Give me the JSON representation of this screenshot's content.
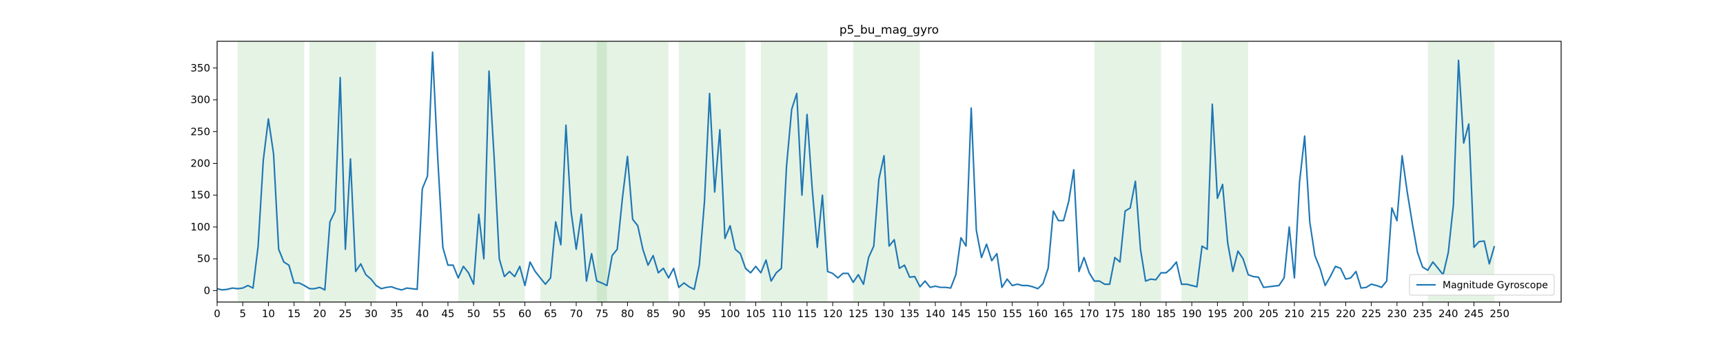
{
  "chart_data": {
    "type": "line",
    "title": "p5_bu_mag_gyro",
    "xlabel": "",
    "ylabel": "",
    "xlim": [
      0,
      262
    ],
    "ylim": [
      -18,
      392
    ],
    "xticks": [
      0,
      5,
      10,
      15,
      20,
      25,
      30,
      35,
      40,
      45,
      50,
      55,
      60,
      65,
      70,
      75,
      80,
      85,
      90,
      95,
      100,
      105,
      110,
      115,
      120,
      125,
      130,
      135,
      140,
      145,
      150,
      155,
      160,
      165,
      170,
      175,
      180,
      185,
      190,
      195,
      200,
      205,
      210,
      215,
      220,
      225,
      230,
      235,
      240,
      245,
      250
    ],
    "yticks": [
      0,
      50,
      100,
      150,
      200,
      250,
      300,
      350
    ],
    "grid": false,
    "legend_position": "lower-right",
    "line_color": "#1f77b4",
    "shade_color": "#2ca02c",
    "shaded_regions": [
      [
        4,
        17
      ],
      [
        18,
        31
      ],
      [
        47,
        60
      ],
      [
        63,
        76
      ],
      [
        74,
        88
      ],
      [
        90,
        103
      ],
      [
        106,
        119
      ],
      [
        124,
        137
      ],
      [
        171,
        184
      ],
      [
        188,
        201
      ],
      [
        236,
        249
      ]
    ],
    "series": [
      {
        "name": "Magnitude Gyroscope",
        "x_start": 0,
        "values": [
          3,
          1,
          2,
          4,
          3,
          4,
          8,
          4,
          70,
          205,
          270,
          215,
          65,
          45,
          40,
          12,
          12,
          8,
          3,
          3,
          5,
          1,
          108,
          125,
          335,
          65,
          207,
          30,
          42,
          25,
          18,
          8,
          3,
          5,
          6,
          3,
          1,
          4,
          3,
          2,
          160,
          180,
          375,
          210,
          68,
          40,
          40,
          20,
          38,
          28,
          10,
          120,
          50,
          345,
          210,
          50,
          22,
          30,
          22,
          38,
          8,
          45,
          30,
          20,
          10,
          20,
          108,
          72,
          260,
          125,
          65,
          120,
          15,
          58,
          15,
          12,
          8,
          55,
          65,
          145,
          211,
          112,
          102,
          65,
          40,
          55,
          28,
          35,
          20,
          35,
          5,
          12,
          6,
          2,
          40,
          140,
          310,
          155,
          253,
          82,
          102,
          65,
          58,
          35,
          28,
          38,
          28,
          48,
          15,
          28,
          35,
          195,
          285,
          310,
          150,
          277,
          160,
          68,
          150,
          30,
          27,
          20,
          27,
          27,
          13,
          25,
          10,
          52,
          70,
          175,
          212,
          70,
          80,
          35,
          40,
          21,
          22,
          6,
          15,
          5,
          7,
          5,
          5,
          4,
          25,
          83,
          70,
          287,
          95,
          52,
          73,
          47,
          58,
          5,
          18,
          8,
          10,
          8,
          8,
          6,
          3,
          11,
          35,
          125,
          110,
          110,
          140,
          190,
          30,
          52,
          28,
          15,
          15,
          10,
          10,
          52,
          45,
          125,
          130,
          172,
          65,
          15,
          18,
          17,
          28,
          28,
          35,
          45,
          10,
          10,
          8,
          6,
          70,
          65,
          293,
          145,
          167,
          75,
          30,
          62,
          50,
          25,
          22,
          21,
          5,
          6,
          7,
          8,
          20,
          100,
          20,
          170,
          243,
          108,
          55,
          35,
          8,
          22,
          38,
          35,
          18,
          20,
          30,
          4,
          5,
          10,
          8,
          5,
          15,
          130,
          110,
          212,
          155,
          105,
          60,
          37,
          32,
          45,
          35,
          25,
          60,
          135,
          362,
          232,
          262,
          68,
          77,
          78,
          42,
          70
        ]
      }
    ]
  }
}
